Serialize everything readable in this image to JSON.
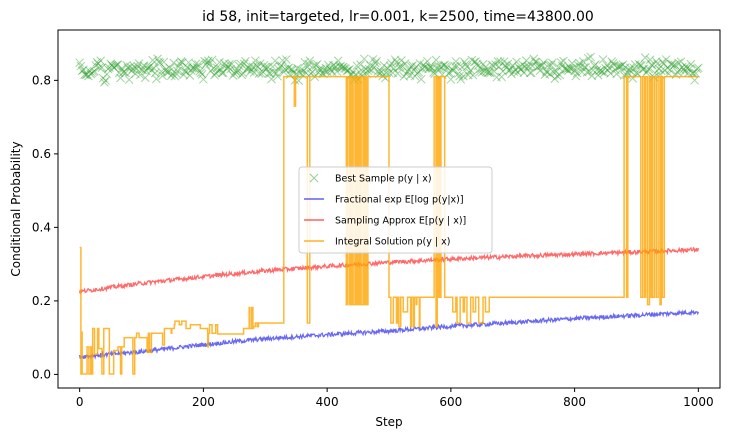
{
  "chart_data": {
    "type": "line",
    "title": "id 58, init=targeted, lr=0.001, k=2500, time=43800.00",
    "xlabel": "Step",
    "ylabel": "Conditional Probability",
    "xlim": [
      -35,
      1035
    ],
    "ylim": [
      -0.037,
      0.937
    ],
    "xticks": [
      0,
      200,
      400,
      600,
      800,
      1000
    ],
    "yticks": [
      0.0,
      0.2,
      0.4,
      0.6,
      0.8
    ],
    "ytick_labels": [
      "0.0",
      "0.2",
      "0.4",
      "0.6",
      "0.8"
    ],
    "grid": false,
    "legend_position": "center",
    "series": [
      {
        "name": "Best Sample p(y | x)",
        "kind": "scatter",
        "marker": "x",
        "color": "#2ca02c",
        "y_mean": 0.83,
        "y_jitter": 0.022,
        "x_start": 0,
        "x_end": 1000,
        "x_step": 2
      },
      {
        "name": "Fractional exp E[log p(y|x)]",
        "kind": "line",
        "color": "#4444ee",
        "x": [
          0,
          100,
          200,
          300,
          400,
          500,
          600,
          700,
          800,
          900,
          1000
        ],
        "y": [
          0.048,
          0.062,
          0.081,
          0.097,
          0.108,
          0.118,
          0.131,
          0.141,
          0.152,
          0.161,
          0.17
        ]
      },
      {
        "name": "Sampling Approx E[p(y | x)]",
        "kind": "line",
        "color": "#ff4444",
        "x": [
          0,
          100,
          200,
          300,
          400,
          500,
          600,
          700,
          800,
          900,
          1000
        ],
        "y": [
          0.225,
          0.248,
          0.266,
          0.282,
          0.294,
          0.305,
          0.314,
          0.321,
          0.327,
          0.333,
          0.34
        ]
      },
      {
        "name": "Integral Solution p(y | x)",
        "kind": "step",
        "color": "#ffa500",
        "x": [
          0,
          2,
          3,
          4,
          12,
          15,
          18,
          19,
          21,
          24,
          29,
          31,
          36,
          39,
          48,
          55,
          62,
          66,
          68,
          72,
          81,
          86,
          89,
          92,
          96,
          109,
          111,
          113,
          116,
          120,
          134,
          137,
          148,
          149,
          153,
          154,
          161,
          165,
          172,
          179,
          189,
          195,
          207,
          208,
          210,
          214,
          220,
          223,
          227,
          265,
          274,
          275,
          278,
          280,
          281,
          284,
          287,
          289,
          292,
          330,
          347,
          349,
          352,
          368,
          372,
          383,
          386,
          431,
          433,
          436,
          437,
          438,
          439,
          440,
          441,
          442,
          445,
          446,
          447,
          448,
          450,
          452,
          454,
          455,
          458,
          460,
          461,
          462,
          463,
          465,
          466,
          468,
          500,
          503,
          507,
          512,
          514,
          516,
          519,
          523,
          530,
          535,
          537,
          540,
          541,
          544,
          545,
          549,
          550,
          570,
          573,
          576,
          578,
          580,
          581,
          583,
          584,
          590,
          600,
          603,
          608,
          610,
          615,
          620,
          622,
          626,
          632,
          636,
          640,
          645,
          652,
          656,
          662,
          880,
          884,
          886,
          905,
          907,
          910,
          913,
          915,
          918,
          921,
          923,
          925,
          926,
          929,
          932,
          935,
          938,
          940,
          942,
          945,
          1000
        ],
        "y": [
          0.345,
          0.001,
          0.115,
          0.001,
          0.075,
          0.001,
          0.075,
          0.001,
          0.125,
          0.055,
          0.125,
          0.07,
          0.001,
          0.125,
          0.001,
          0.065,
          0.075,
          0.001,
          0.075,
          0.1,
          0.1,
          0.001,
          0.1,
          0.112,
          0.1,
          0.06,
          0.112,
          0.06,
          0.112,
          0.112,
          0.08,
          0.125,
          0.112,
          0.125,
          0.135,
          0.145,
          0.135,
          0.145,
          0.125,
          0.135,
          0.135,
          0.125,
          0.075,
          0.112,
          0.135,
          0.112,
          0.135,
          0.11,
          0.11,
          0.125,
          0.182,
          0.125,
          0.182,
          0.125,
          0.13,
          0.14,
          0.13,
          0.14,
          0.14,
          0.81,
          0.73,
          0.81,
          0.81,
          0.14,
          0.81,
          0.81,
          0.81,
          0.19,
          0.81,
          0.19,
          0.81,
          0.19,
          0.81,
          0.19,
          0.81,
          0.19,
          0.81,
          0.19,
          0.81,
          0.19,
          0.81,
          0.19,
          0.81,
          0.19,
          0.81,
          0.19,
          0.81,
          0.19,
          0.81,
          0.19,
          0.81,
          0.81,
          0.21,
          0.14,
          0.21,
          0.14,
          0.21,
          0.13,
          0.21,
          0.17,
          0.21,
          0.13,
          0.21,
          0.13,
          0.21,
          0.19,
          0.21,
          0.13,
          0.21,
          0.21,
          0.81,
          0.13,
          0.81,
          0.21,
          0.81,
          0.21,
          0.81,
          0.21,
          0.21,
          0.17,
          0.21,
          0.14,
          0.21,
          0.17,
          0.21,
          0.14,
          0.21,
          0.17,
          0.21,
          0.14,
          0.21,
          0.17,
          0.21,
          0.81,
          0.21,
          0.81,
          0.81,
          0.21,
          0.81,
          0.21,
          0.81,
          0.19,
          0.81,
          0.21,
          0.81,
          0.21,
          0.81,
          0.21,
          0.81,
          0.19,
          0.81,
          0.21,
          0.81,
          0.81
        ]
      }
    ]
  },
  "legend": {
    "items": [
      {
        "label": "Best Sample p(y | x)",
        "color": "#2ca02c",
        "marker": "x"
      },
      {
        "label": "Fractional exp E[log p(y|x)]",
        "color": "#4444ee",
        "marker": "line"
      },
      {
        "label": "Sampling Approx E[p(y | x)]",
        "color": "#ff4444",
        "marker": "line"
      },
      {
        "label": "Integral Solution p(y | x)",
        "color": "#ffa500",
        "marker": "line"
      }
    ]
  }
}
